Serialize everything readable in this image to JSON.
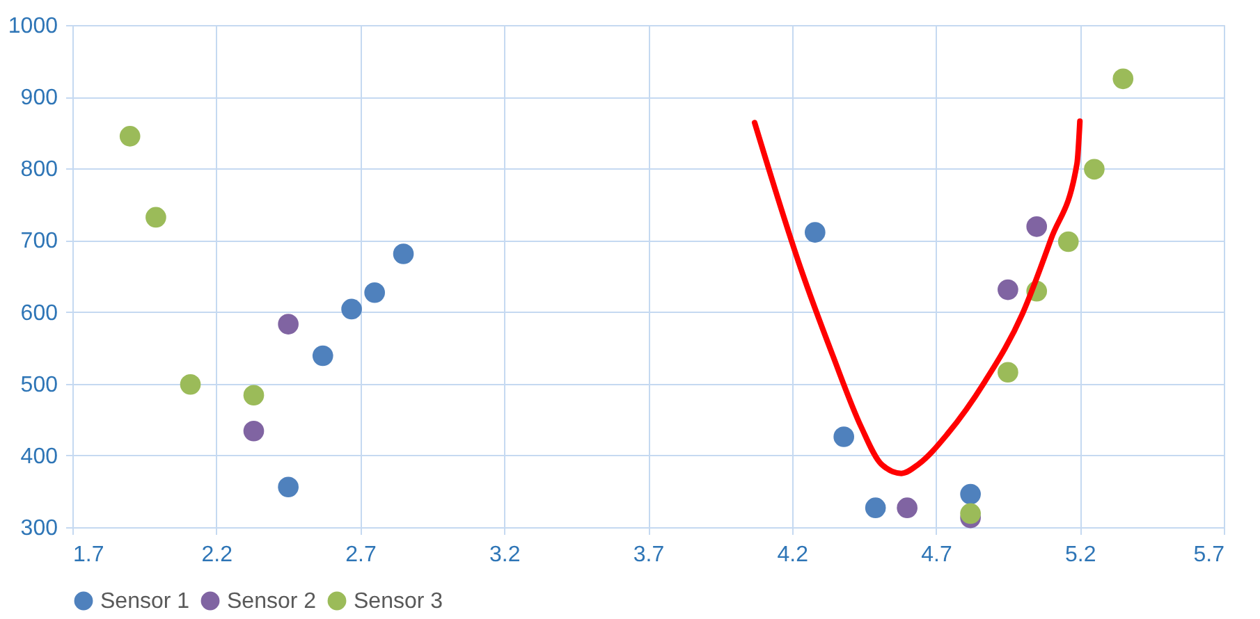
{
  "chart_data": {
    "type": "scatter",
    "marker": "circle",
    "grid": true,
    "legend": "bottom",
    "xlim": [
      1.7,
      5.7
    ],
    "xticks": [
      1.7,
      2.2,
      2.7,
      3.2,
      3.7,
      4.2,
      4.7,
      5.2,
      5.7
    ],
    "ylim": [
      300,
      1000
    ],
    "yticks": [
      300,
      400,
      500,
      600,
      700,
      800,
      900,
      1000
    ],
    "series": [
      {
        "name": "Sensor 1",
        "color": "#4f81bd",
        "x": [
          2.45,
          2.57,
          2.67,
          2.75,
          2.85,
          4.28,
          4.38,
          4.49,
          4.82
        ],
        "values": [
          356,
          539,
          604,
          627,
          681,
          711,
          426,
          327,
          346
        ]
      },
      {
        "name": "Sensor 2",
        "color": "#8064a2",
        "x": [
          2.45,
          2.33,
          4.6,
          4.82,
          4.95,
          5.05
        ],
        "values": [
          583,
          434,
          327,
          313,
          631,
          719
        ]
      },
      {
        "name": "Sensor 3",
        "color": "#9bbb59",
        "x": [
          1.9,
          1.99,
          2.11,
          2.33,
          4.82,
          4.95,
          5.05,
          5.16,
          5.25,
          5.35
        ],
        "values": [
          845,
          732,
          499,
          484,
          319,
          516,
          629,
          698,
          799,
          925
        ]
      },
      {
        "type": "line",
        "marker": "none",
        "line_style": "solid",
        "color": "#ff0000",
        "x": [
          4.07,
          4.23,
          4.34,
          4.44,
          4.51,
          4.58,
          4.64,
          4.74,
          4.87,
          5.0,
          5.1,
          5.19,
          5.2
        ],
        "values": [
          864,
          661,
          541,
          440,
          388,
          375,
          388,
          430,
          503,
          597,
          702,
          807,
          866
        ]
      }
    ]
  }
}
